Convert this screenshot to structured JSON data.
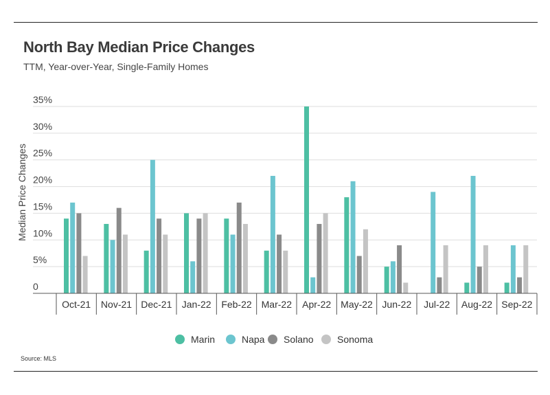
{
  "title": "North Bay Median Price Changes",
  "subtitle": "TTM, Year-over-Year, Single-Family Homes",
  "source": "Source:  MLS",
  "chart_data": {
    "type": "bar",
    "title": "North Bay Median Price Changes",
    "subtitle": "TTM, Year-over-Year, Single-Family Homes",
    "ylabel": "Median Price Changes",
    "xlabel": "",
    "ylim": [
      0,
      35
    ],
    "yticks": [
      0,
      5,
      10,
      15,
      20,
      25,
      30,
      35
    ],
    "ytick_labels": [
      "0",
      "5%",
      "10%",
      "15%",
      "20%",
      "25%",
      "30%",
      "35%"
    ],
    "grid": true,
    "legend_position": "bottom",
    "categories": [
      "Oct-21",
      "Nov-21",
      "Dec-21",
      "Jan-22",
      "Feb-22",
      "Mar-22",
      "Apr-22",
      "May-22",
      "Jun-22",
      "Jul-22",
      "Aug-22",
      "Sep-22"
    ],
    "series": [
      {
        "name": "Marin",
        "color": "#4dbfa3",
        "values": [
          14,
          13,
          8,
          15,
          14,
          8,
          35,
          18,
          5,
          0,
          2,
          2
        ]
      },
      {
        "name": "Napa",
        "color": "#6cc5cf",
        "values": [
          17,
          10,
          25,
          6,
          11,
          22,
          3,
          21,
          6,
          19,
          22,
          9
        ]
      },
      {
        "name": "Solano",
        "color": "#8a8a8a",
        "values": [
          15,
          16,
          14,
          14,
          17,
          11,
          13,
          7,
          9,
          3,
          5,
          3
        ]
      },
      {
        "name": "Sonoma",
        "color": "#c4c4c4",
        "values": [
          7,
          11,
          11,
          15,
          13,
          8,
          15,
          12,
          2,
          9,
          9,
          9
        ]
      }
    ]
  }
}
